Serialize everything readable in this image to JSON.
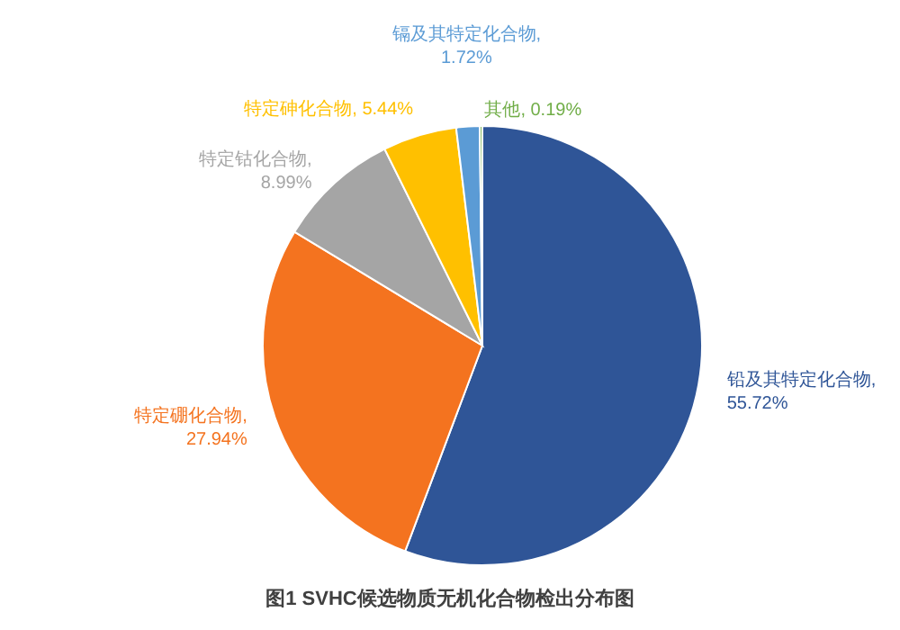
{
  "chart_data": {
    "type": "pie",
    "title": "图1 SVHC候选物质无机化合物检出分布图",
    "categories": [
      "铅及其特定化合物",
      "特定硼化合物",
      "特定钴化合物",
      "特定砷化合物",
      "镉及其特定化合物",
      "其他"
    ],
    "values": [
      55.72,
      27.94,
      8.99,
      5.44,
      1.72,
      0.19
    ],
    "value_labels": [
      ", 55.72%",
      ", 27.94%",
      ", 8.99%",
      ", 5.44%",
      ", 1.72%",
      ", 0.19%"
    ],
    "colors": [
      "#2f5597",
      "#f4731f",
      "#a5a5a5",
      "#ffc000",
      "#5b9bd5",
      "#70ad47"
    ],
    "legend": false
  }
}
